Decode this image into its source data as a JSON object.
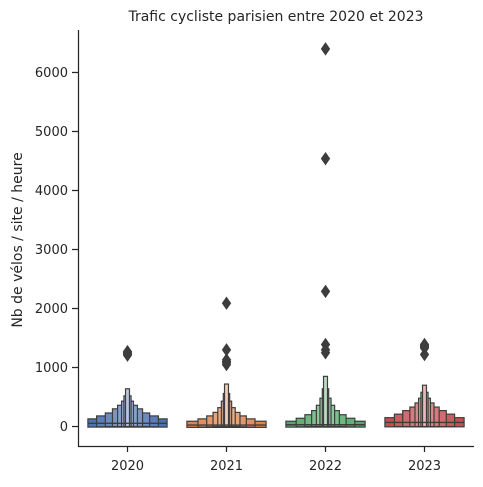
{
  "chart_data": {
    "type": "boxen",
    "title": "Trafic cycliste parisien entre 2020 et 2023",
    "xlabel": "",
    "ylabel": "Nb de vélos / site / heure",
    "ylim": [
      -330,
      6720
    ],
    "yticks": [
      0,
      1000,
      2000,
      3000,
      4000,
      5000,
      6000
    ],
    "categories": [
      "2020",
      "2021",
      "2022",
      "2023"
    ],
    "colors": [
      "#4c72b0",
      "#dd8452",
      "#55a868",
      "#c44e52"
    ],
    "grid": false,
    "series": [
      {
        "category": "2020",
        "median": 55,
        "boxes": [
          {
            "low": -10,
            "high": 130,
            "width": 1.0
          },
          {
            "low": -5,
            "high": 180,
            "width": 0.78
          },
          {
            "low": 0,
            "high": 230,
            "width": 0.56
          },
          {
            "low": 0,
            "high": 300,
            "width": 0.38
          },
          {
            "low": 0,
            "high": 360,
            "width": 0.25
          },
          {
            "low": 0,
            "high": 430,
            "width": 0.15
          },
          {
            "low": 0,
            "high": 520,
            "width": 0.09
          },
          {
            "low": 0,
            "high": 640,
            "width": 0.05
          }
        ],
        "outliers": [
          1210,
          1230,
          1250,
          1270
        ]
      },
      {
        "category": "2021",
        "median": 25,
        "boxes": [
          {
            "low": -15,
            "high": 90,
            "width": 1.0
          },
          {
            "low": -10,
            "high": 130,
            "width": 0.72
          },
          {
            "low": -5,
            "high": 180,
            "width": 0.5
          },
          {
            "low": 0,
            "high": 240,
            "width": 0.34
          },
          {
            "low": 0,
            "high": 320,
            "width": 0.22
          },
          {
            "low": 0,
            "high": 430,
            "width": 0.13
          },
          {
            "low": 0,
            "high": 560,
            "width": 0.08
          },
          {
            "low": 0,
            "high": 720,
            "width": 0.05
          }
        ],
        "outliers": [
          1050,
          1080,
          1100,
          1130,
          1300,
          2090
        ]
      },
      {
        "category": "2022",
        "median": 30,
        "boxes": [
          {
            "low": -10,
            "high": 90,
            "width": 1.0
          },
          {
            "low": -5,
            "high": 140,
            "width": 0.74
          },
          {
            "low": 0,
            "high": 200,
            "width": 0.52
          },
          {
            "low": 0,
            "high": 270,
            "width": 0.35
          },
          {
            "low": 0,
            "high": 360,
            "width": 0.23
          },
          {
            "low": 0,
            "high": 480,
            "width": 0.14
          },
          {
            "low": 0,
            "high": 640,
            "width": 0.08
          },
          {
            "low": 0,
            "high": 850,
            "width": 0.05
          }
        ],
        "outliers": [
          1250,
          1300,
          1390,
          2290,
          4540,
          6400
        ]
      },
      {
        "category": "2023",
        "median": 70,
        "boxes": [
          {
            "low": -5,
            "high": 150,
            "width": 1.0
          },
          {
            "low": 0,
            "high": 210,
            "width": 0.76
          },
          {
            "low": 0,
            "high": 270,
            "width": 0.55
          },
          {
            "low": 0,
            "high": 330,
            "width": 0.37
          },
          {
            "low": 0,
            "high": 400,
            "width": 0.24
          },
          {
            "low": 0,
            "high": 480,
            "width": 0.15
          },
          {
            "low": 0,
            "high": 580,
            "width": 0.09
          },
          {
            "low": 0,
            "high": 700,
            "width": 0.05
          }
        ],
        "outliers": [
          1220,
          1330,
          1350,
          1370,
          1390
        ]
      }
    ]
  }
}
